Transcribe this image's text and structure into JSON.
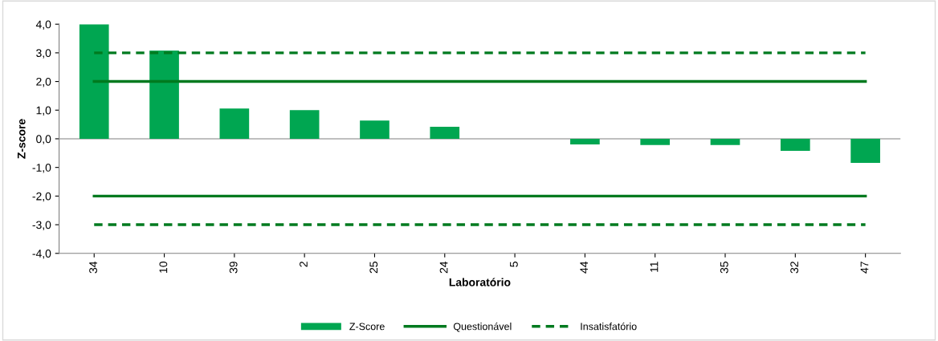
{
  "chart_data": {
    "type": "bar",
    "xlabel": "Laboratório",
    "ylabel": "Z-score",
    "categories": [
      "34",
      "10",
      "39",
      "2",
      "25",
      "24",
      "5",
      "44",
      "11",
      "35",
      "32",
      "47"
    ],
    "series": [
      {
        "name": "Z-Score",
        "color": "#00a651",
        "values": [
          4.0,
          3.08,
          1.06,
          1.0,
          0.64,
          0.42,
          0,
          -0.2,
          -0.22,
          -0.22,
          -0.42,
          -0.84
        ]
      },
      {
        "name": "Questionável",
        "type": "line",
        "color": "#007a1f",
        "line_style": "solid",
        "values": [
          2,
          2,
          2,
          2,
          2,
          2,
          2,
          2,
          2,
          2,
          2,
          2
        ]
      },
      {
        "type": "line",
        "color": "#007a1f",
        "line_style": "solid",
        "values": [
          -2,
          -2,
          -2,
          -2,
          -2,
          -2,
          -2,
          -2,
          -2,
          -2,
          -2,
          -2
        ]
      },
      {
        "name": "Insatisfatório",
        "type": "line",
        "color": "#007a1f",
        "line_style": "dashed",
        "values": [
          3,
          3,
          3,
          3,
          3,
          3,
          3,
          3,
          3,
          3,
          3,
          3
        ]
      },
      {
        "type": "line",
        "color": "#007a1f",
        "line_style": "dashed",
        "values": [
          -3,
          -3,
          -3,
          -3,
          -3,
          -3,
          -3,
          -3,
          -3,
          -3,
          -3,
          -3
        ]
      }
    ],
    "ylim": [
      -4,
      4
    ],
    "yticks": [
      {
        "value": -4,
        "label": "-4,0"
      },
      {
        "value": -3,
        "label": "-3,0"
      },
      {
        "value": -2,
        "label": "-2,0"
      },
      {
        "value": -1,
        "label": "-1,0"
      },
      {
        "value": 0,
        "label": "0,0"
      },
      {
        "value": 1,
        "label": "1,0"
      },
      {
        "value": 2,
        "label": "2,0"
      },
      {
        "value": 3,
        "label": "3,0"
      },
      {
        "value": 4,
        "label": "4,0"
      }
    ],
    "ref_lines": [
      {
        "axis": "y",
        "value": 0,
        "color": "#808080",
        "line_style": "solid"
      }
    ],
    "grid": false,
    "legend": "bottom"
  }
}
